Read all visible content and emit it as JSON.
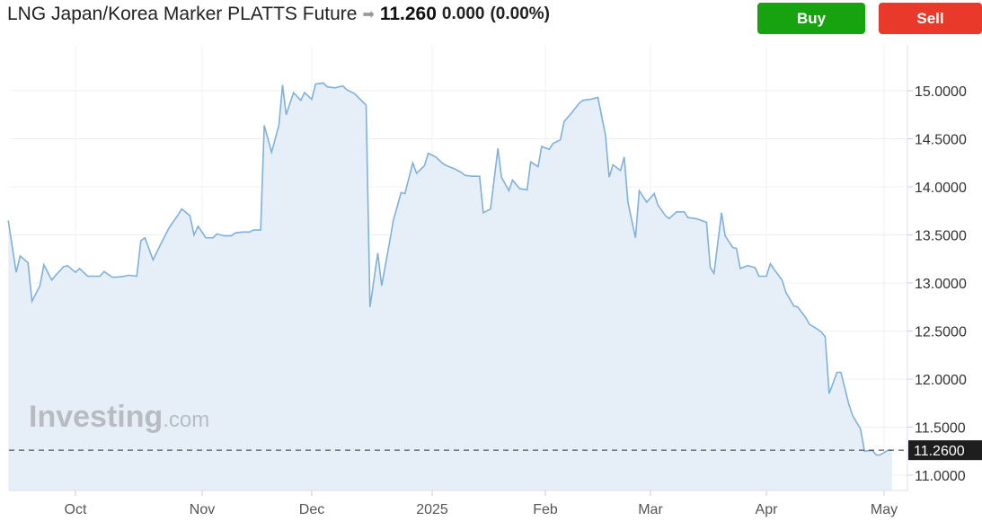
{
  "header": {
    "instrument": "LNG Japan/Korea Marker PLATTS Future",
    "direction_icon": "arrow-right-icon",
    "price": "11.260",
    "change": "0.000",
    "change_pct": "(0.00%)"
  },
  "actions": {
    "buy_label": "Buy",
    "sell_label": "Sell",
    "buy_color": "#17a30f",
    "sell_color": "#e8392b"
  },
  "watermark": {
    "brand": "Investing",
    "suffix": ".com"
  },
  "chart_data": {
    "type": "area",
    "title": "",
    "xlabel": "",
    "ylabel": "",
    "ylim": [
      10.9,
      15.4
    ],
    "y_axis_position": "right",
    "grid": true,
    "line_color": "#7fb1dc",
    "fill_color": "#e3edf6",
    "y_ticks": [
      "11.0000",
      "11.5000",
      "12.0000",
      "12.5000",
      "13.0000",
      "13.5000",
      "14.0000",
      "14.5000",
      "15.0000"
    ],
    "x_ticks": [
      {
        "label": "Oct",
        "date": "2024-10-01"
      },
      {
        "label": "Nov",
        "date": "2024-11-01"
      },
      {
        "label": "Dec",
        "date": "2024-12-01"
      },
      {
        "label": "2025",
        "date": "2025-01-01"
      },
      {
        "label": "Feb",
        "date": "2025-02-01"
      },
      {
        "label": "Mar",
        "date": "2025-03-01"
      },
      {
        "label": "Apr",
        "date": "2025-04-01"
      },
      {
        "label": "May",
        "date": "2025-05-01"
      }
    ],
    "last_value_label": "11.2600",
    "last_value": 11.26,
    "series": [
      {
        "points": [
          [
            "2024-09-14",
            13.65
          ],
          [
            "2024-09-16",
            13.11
          ],
          [
            "2024-09-17",
            13.28
          ],
          [
            "2024-09-19",
            13.21
          ],
          [
            "2024-09-20",
            12.81
          ],
          [
            "2024-09-22",
            12.97
          ],
          [
            "2024-09-23",
            13.19
          ],
          [
            "2024-09-25",
            13.03
          ],
          [
            "2024-09-26",
            13.08
          ],
          [
            "2024-09-28",
            13.17
          ],
          [
            "2024-09-29",
            13.18
          ],
          [
            "2024-10-01",
            13.11
          ],
          [
            "2024-10-02",
            13.15
          ],
          [
            "2024-10-04",
            13.07
          ],
          [
            "2024-10-05",
            13.07
          ],
          [
            "2024-10-07",
            13.07
          ],
          [
            "2024-10-08",
            13.12
          ],
          [
            "2024-10-10",
            13.06
          ],
          [
            "2024-10-11",
            13.06
          ],
          [
            "2024-10-13",
            13.07
          ],
          [
            "2024-10-14",
            13.08
          ],
          [
            "2024-10-16",
            13.07
          ],
          [
            "2024-10-17",
            13.44
          ],
          [
            "2024-10-18",
            13.47
          ],
          [
            "2024-10-20",
            13.24
          ],
          [
            "2024-10-21",
            13.33
          ],
          [
            "2024-10-23",
            13.5
          ],
          [
            "2024-10-24",
            13.58
          ],
          [
            "2024-10-26",
            13.7
          ],
          [
            "2024-10-27",
            13.77
          ],
          [
            "2024-10-29",
            13.7
          ],
          [
            "2024-10-30",
            13.5
          ],
          [
            "2024-10-31",
            13.59
          ],
          [
            "2024-11-02",
            13.47
          ],
          [
            "2024-11-04",
            13.47
          ],
          [
            "2024-11-05",
            13.51
          ],
          [
            "2024-11-07",
            13.49
          ],
          [
            "2024-11-09",
            13.49
          ],
          [
            "2024-11-10",
            13.52
          ],
          [
            "2024-11-12",
            13.53
          ],
          [
            "2024-11-14",
            13.53
          ],
          [
            "2024-11-15",
            13.55
          ],
          [
            "2024-11-17",
            13.55
          ],
          [
            "2024-11-18",
            14.64
          ],
          [
            "2024-11-20",
            14.36
          ],
          [
            "2024-11-22",
            14.64
          ],
          [
            "2024-11-23",
            15.06
          ],
          [
            "2024-11-24",
            14.75
          ],
          [
            "2024-11-26",
            14.98
          ],
          [
            "2024-11-28",
            14.9
          ],
          [
            "2024-11-29",
            14.98
          ],
          [
            "2024-12-01",
            14.91
          ],
          [
            "2024-12-02",
            15.07
          ],
          [
            "2024-12-04",
            15.08
          ],
          [
            "2024-12-05",
            15.04
          ],
          [
            "2024-12-07",
            15.03
          ],
          [
            "2024-12-09",
            15.05
          ],
          [
            "2024-12-10",
            15.01
          ],
          [
            "2024-12-12",
            14.97
          ],
          [
            "2024-12-13",
            14.93
          ],
          [
            "2024-12-15",
            14.85
          ],
          [
            "2024-12-16",
            12.75
          ],
          [
            "2024-12-18",
            13.31
          ],
          [
            "2024-12-19",
            12.97
          ],
          [
            "2024-12-21",
            13.42
          ],
          [
            "2024-12-22",
            13.65
          ],
          [
            "2024-12-24",
            13.94
          ],
          [
            "2024-12-25",
            13.93
          ],
          [
            "2024-12-27",
            14.25
          ],
          [
            "2024-12-28",
            14.14
          ],
          [
            "2024-12-30",
            14.22
          ],
          [
            "2024-12-31",
            14.35
          ],
          [
            "2025-01-02",
            14.31
          ],
          [
            "2025-01-04",
            14.24
          ],
          [
            "2025-01-05",
            14.22
          ],
          [
            "2025-01-07",
            14.19
          ],
          [
            "2025-01-09",
            14.15
          ],
          [
            "2025-01-10",
            14.12
          ],
          [
            "2025-01-12",
            14.11
          ],
          [
            "2025-01-14",
            14.11
          ],
          [
            "2025-01-15",
            13.73
          ],
          [
            "2025-01-17",
            13.77
          ],
          [
            "2025-01-19",
            14.4
          ],
          [
            "2025-01-20",
            14.1
          ],
          [
            "2025-01-22",
            13.96
          ],
          [
            "2025-01-23",
            14.07
          ],
          [
            "2025-01-25",
            13.98
          ],
          [
            "2025-01-27",
            13.97
          ],
          [
            "2025-01-28",
            14.26
          ],
          [
            "2025-01-30",
            14.21
          ],
          [
            "2025-01-31",
            14.42
          ],
          [
            "2025-02-02",
            14.39
          ],
          [
            "2025-02-03",
            14.45
          ],
          [
            "2025-02-05",
            14.49
          ],
          [
            "2025-02-06",
            14.68
          ],
          [
            "2025-02-08",
            14.77
          ],
          [
            "2025-02-10",
            14.87
          ],
          [
            "2025-02-11",
            14.9
          ],
          [
            "2025-02-13",
            14.91
          ],
          [
            "2025-02-15",
            14.93
          ],
          [
            "2025-02-17",
            14.54
          ],
          [
            "2025-02-18",
            14.1
          ],
          [
            "2025-02-19",
            14.23
          ],
          [
            "2025-02-21",
            14.17
          ],
          [
            "2025-02-22",
            14.31
          ],
          [
            "2025-02-23",
            13.84
          ],
          [
            "2025-02-25",
            13.47
          ],
          [
            "2025-02-26",
            13.96
          ],
          [
            "2025-02-28",
            13.84
          ],
          [
            "2025-03-02",
            13.93
          ],
          [
            "2025-03-03",
            13.81
          ],
          [
            "2025-03-05",
            13.7
          ],
          [
            "2025-03-06",
            13.67
          ],
          [
            "2025-03-08",
            13.74
          ],
          [
            "2025-03-10",
            13.74
          ],
          [
            "2025-03-11",
            13.68
          ],
          [
            "2025-03-13",
            13.67
          ],
          [
            "2025-03-14",
            13.66
          ],
          [
            "2025-03-16",
            13.63
          ],
          [
            "2025-03-17",
            13.16
          ],
          [
            "2025-03-18",
            13.1
          ],
          [
            "2025-03-20",
            13.73
          ],
          [
            "2025-03-21",
            13.49
          ],
          [
            "2025-03-23",
            13.37
          ],
          [
            "2025-03-24",
            13.36
          ],
          [
            "2025-03-25",
            13.15
          ],
          [
            "2025-03-27",
            13.18
          ],
          [
            "2025-03-29",
            13.16
          ],
          [
            "2025-03-30",
            13.07
          ],
          [
            "2025-04-01",
            13.07
          ],
          [
            "2025-04-02",
            13.2
          ],
          [
            "2025-04-03",
            13.14
          ],
          [
            "2025-04-05",
            13.03
          ],
          [
            "2025-04-06",
            12.9
          ],
          [
            "2025-04-08",
            12.76
          ],
          [
            "2025-04-09",
            12.75
          ],
          [
            "2025-04-11",
            12.64
          ],
          [
            "2025-04-12",
            12.57
          ],
          [
            "2025-04-14",
            12.52
          ],
          [
            "2025-04-15",
            12.49
          ],
          [
            "2025-04-16",
            12.44
          ],
          [
            "2025-04-17",
            11.85
          ],
          [
            "2025-04-19",
            12.07
          ],
          [
            "2025-04-20",
            12.07
          ],
          [
            "2025-04-22",
            11.74
          ],
          [
            "2025-04-23",
            11.62
          ],
          [
            "2025-04-25",
            11.48
          ],
          [
            "2025-04-26",
            11.25
          ],
          [
            "2025-04-28",
            11.26
          ],
          [
            "2025-04-29",
            11.21
          ],
          [
            "2025-04-30",
            11.21
          ],
          [
            "2025-05-02",
            11.26
          ],
          [
            "2025-05-03",
            11.26
          ]
        ]
      }
    ]
  }
}
